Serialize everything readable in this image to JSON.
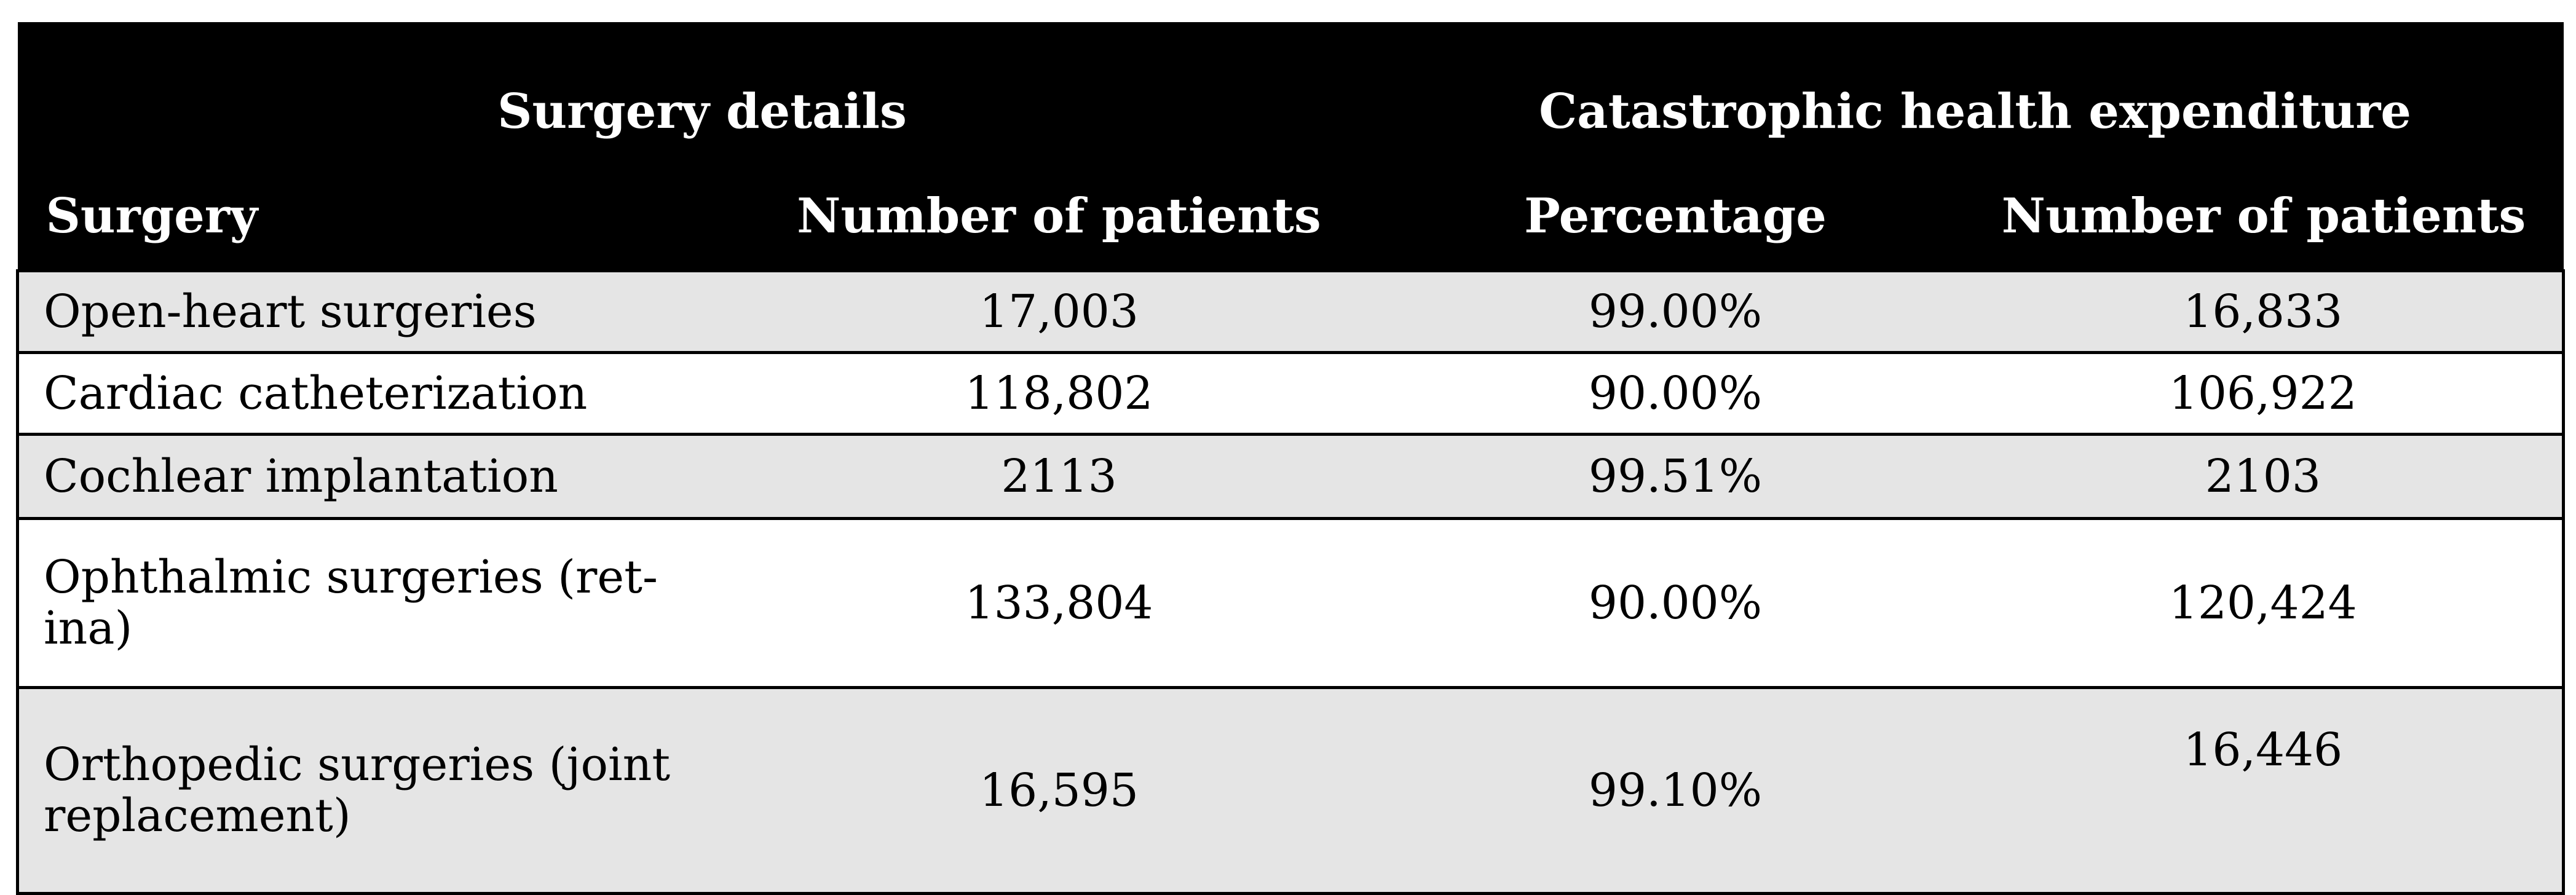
{
  "table": {
    "group_headers": {
      "left": "Surgery details",
      "right": "Catastrophic health expenditure"
    },
    "column_headers": [
      "Surgery",
      "Number of patients",
      "Percentage",
      "Number of patients"
    ],
    "rows": [
      {
        "surgery": "Open-heart surgeries",
        "patients": "17,003",
        "percentage": "99.00%",
        "che_patients": "16,833"
      },
      {
        "surgery": "Cardiac catheterization",
        "patients": "118,802",
        "percentage": "90.00%",
        "che_patients": "106,922"
      },
      {
        "surgery": "Cochlear implantation",
        "patients": "2113",
        "percentage": "99.51%",
        "che_patients": "2103"
      },
      {
        "surgery": "Ophthalmic surgeries (ret-ina)",
        "surgery_line1": "Ophthalmic surgeries (ret-",
        "surgery_line2": "ina)",
        "patients": "133,804",
        "percentage": "90.00%",
        "che_patients": "120,424"
      },
      {
        "surgery": "Orthopedic surgeries (joint replacement)",
        "surgery_line1": "Orthopedic surgeries (joint",
        "surgery_line2": "replacement)",
        "patients": "16,595",
        "percentage": "99.10%",
        "che_patients": "16,446"
      }
    ]
  }
}
